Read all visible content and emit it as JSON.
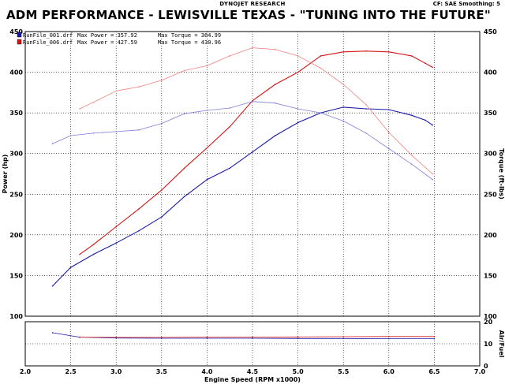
{
  "header": {
    "research": "DYNOJET RESEARCH",
    "cf": "CF: SAE  Smoothing: 5",
    "title": "ADM PERFORMANCE - LEWISVILLE TEXAS - \"TUNING INTO THE FUTURE\""
  },
  "chart_data": [
    {
      "type": "line",
      "xlabel": "Engine Speed (RPM x1000)",
      "ylabel": "Power (hp)",
      "y2label": "Torque (ft-lbs)",
      "xlim": [
        2.0,
        7.0
      ],
      "ylim": [
        100,
        450
      ],
      "xticks": [
        "2.0",
        "2.5",
        "3.0",
        "3.5",
        "4.0",
        "4.5",
        "5.0",
        "5.5",
        "6.0",
        "6.5",
        "7.0"
      ],
      "yticks": [
        "100",
        "150",
        "200",
        "250",
        "300",
        "350",
        "400",
        "450"
      ],
      "grid": true,
      "legend_position": "top-left",
      "legend": [
        {
          "file": "RunFile_001.drf",
          "max_power_label": "Max Power = 357.92",
          "max_torque_label": "Max Torque = 364.99",
          "color": "#1a1aa8"
        },
        {
          "file": "RunFile_006.drf",
          "max_power_label": "Max Power = 427.59",
          "max_torque_label": "Max Torque = 430.96",
          "color": "#d41414"
        }
      ],
      "series": [
        {
          "measure": "power",
          "run": "RunFile_001.drf",
          "color": "#1a1aa8",
          "x": [
            2.3,
            2.5,
            2.75,
            3.0,
            3.25,
            3.5,
            3.75,
            4.0,
            4.25,
            4.5,
            4.75,
            5.0,
            5.25,
            5.5,
            5.75,
            6.0,
            6.25,
            6.4,
            6.48
          ],
          "y": [
            137,
            160,
            176,
            190,
            205,
            222,
            247,
            268,
            282,
            302,
            322,
            338,
            350,
            357,
            355,
            354,
            347,
            341,
            335
          ]
        },
        {
          "measure": "power",
          "run": "RunFile_006.drf",
          "color": "#d41414",
          "x": [
            2.6,
            2.75,
            3.0,
            3.25,
            3.5,
            3.75,
            4.0,
            4.25,
            4.5,
            4.75,
            5.0,
            5.25,
            5.5,
            5.75,
            6.0,
            6.25,
            6.4,
            6.48
          ],
          "y": [
            176,
            188,
            210,
            232,
            255,
            282,
            307,
            333,
            365,
            385,
            400,
            420,
            425,
            426,
            425,
            420,
            411,
            406
          ]
        },
        {
          "measure": "torque",
          "run": "RunFile_001.drf",
          "color": "#7f7fd4",
          "x": [
            2.3,
            2.5,
            2.75,
            3.0,
            3.25,
            3.5,
            3.75,
            4.0,
            4.25,
            4.5,
            4.75,
            5.0,
            5.25,
            5.5,
            5.75,
            6.0,
            6.25,
            6.48
          ],
          "y": [
            312,
            322,
            325,
            327,
            329,
            337,
            349,
            353,
            356,
            364,
            362,
            355,
            350,
            340,
            325,
            306,
            287,
            268
          ]
        },
        {
          "measure": "torque",
          "run": "RunFile_006.drf",
          "color": "#f08080",
          "x": [
            2.6,
            2.75,
            3.0,
            3.25,
            3.5,
            3.75,
            4.0,
            4.25,
            4.5,
            4.75,
            5.0,
            5.25,
            5.5,
            5.75,
            6.0,
            6.25,
            6.48
          ],
          "y": [
            355,
            363,
            377,
            382,
            390,
            402,
            408,
            420,
            430,
            428,
            420,
            405,
            385,
            360,
            326,
            298,
            275
          ]
        }
      ]
    },
    {
      "type": "line",
      "xlabel": "Engine Speed (RPM x1000)",
      "ylabel": "Air/Fuel",
      "xlim": [
        2.0,
        7.0
      ],
      "ylim": [
        0,
        20
      ],
      "yticks": [
        "0",
        "10",
        "20"
      ],
      "grid": true,
      "series": [
        {
          "run": "RunFile_001.drf",
          "color": "#1a1aa8",
          "x": [
            2.3,
            2.6,
            3.0,
            3.5,
            4.0,
            4.5,
            5.0,
            5.5,
            6.0,
            6.5
          ],
          "y": [
            15.0,
            13.0,
            12.6,
            12.5,
            12.5,
            12.5,
            12.4,
            12.4,
            12.3,
            12.3
          ]
        },
        {
          "run": "RunFile_006.drf",
          "color": "#d41414",
          "x": [
            2.6,
            3.0,
            3.5,
            4.0,
            4.5,
            5.0,
            5.5,
            6.0,
            6.5
          ],
          "y": [
            13.0,
            12.9,
            12.9,
            13.0,
            13.0,
            13.1,
            13.2,
            13.3,
            13.3
          ]
        }
      ]
    }
  ]
}
